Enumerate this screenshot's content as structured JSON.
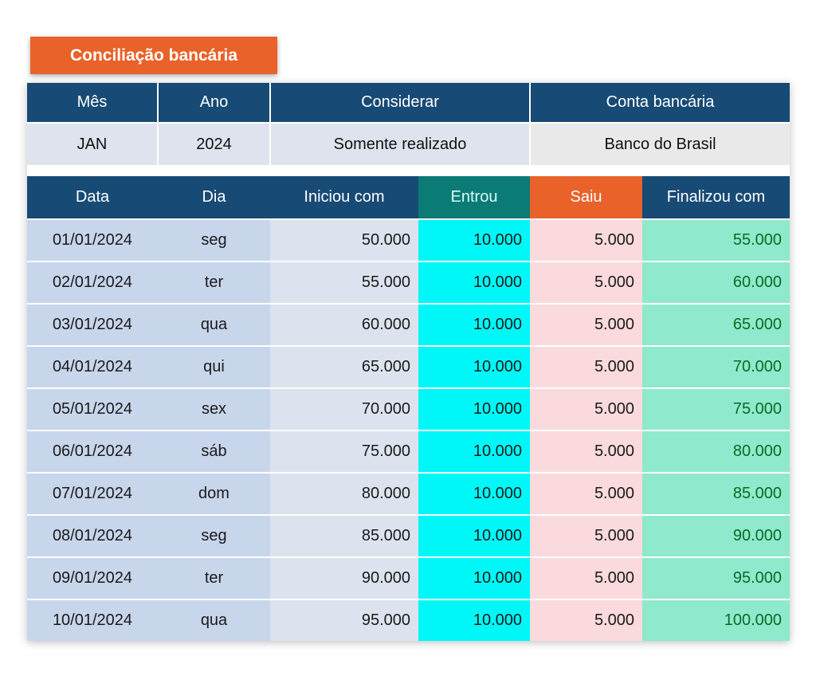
{
  "title": "Conciliação bancária",
  "filters": {
    "headers": {
      "mes": "Mês",
      "ano": "Ano",
      "considerar": "Considerar",
      "conta": "Conta bancária"
    },
    "values": {
      "mes": "JAN",
      "ano": "2024",
      "considerar": "Somente realizado",
      "conta": "Banco do Brasil"
    }
  },
  "table": {
    "headers": {
      "data": "Data",
      "dia": "Dia",
      "iniciou": "Iniciou com",
      "entrou": "Entrou",
      "saiu": "Saiu",
      "finalizou": "Finalizou com"
    },
    "rows": [
      {
        "data": "01/01/2024",
        "dia": "seg",
        "iniciou": "50.000",
        "entrou": "10.000",
        "saiu": "5.000",
        "finalizou": "55.000"
      },
      {
        "data": "02/01/2024",
        "dia": "ter",
        "iniciou": "55.000",
        "entrou": "10.000",
        "saiu": "5.000",
        "finalizou": "60.000"
      },
      {
        "data": "03/01/2024",
        "dia": "qua",
        "iniciou": "60.000",
        "entrou": "10.000",
        "saiu": "5.000",
        "finalizou": "65.000"
      },
      {
        "data": "04/01/2024",
        "dia": "qui",
        "iniciou": "65.000",
        "entrou": "10.000",
        "saiu": "5.000",
        "finalizou": "70.000"
      },
      {
        "data": "05/01/2024",
        "dia": "sex",
        "iniciou": "70.000",
        "entrou": "10.000",
        "saiu": "5.000",
        "finalizou": "75.000"
      },
      {
        "data": "06/01/2024",
        "dia": "sáb",
        "iniciou": "75.000",
        "entrou": "10.000",
        "saiu": "5.000",
        "finalizou": "80.000"
      },
      {
        "data": "07/01/2024",
        "dia": "dom",
        "iniciou": "80.000",
        "entrou": "10.000",
        "saiu": "5.000",
        "finalizou": "85.000"
      },
      {
        "data": "08/01/2024",
        "dia": "seg",
        "iniciou": "85.000",
        "entrou": "10.000",
        "saiu": "5.000",
        "finalizou": "90.000"
      },
      {
        "data": "09/01/2024",
        "dia": "ter",
        "iniciou": "90.000",
        "entrou": "10.000",
        "saiu": "5.000",
        "finalizou": "95.000"
      },
      {
        "data": "10/01/2024",
        "dia": "qua",
        "iniciou": "95.000",
        "entrou": "10.000",
        "saiu": "5.000",
        "finalizou": "100.000"
      }
    ]
  },
  "colors": {
    "header": "#174a75",
    "accent_orange": "#e8622a",
    "entrou_header": "#0b7b76",
    "entrou": "#00f7f7",
    "saiu": "#fadadd",
    "finalizou": "#8fe9cd",
    "finalizou_text": "#0a6b22"
  }
}
